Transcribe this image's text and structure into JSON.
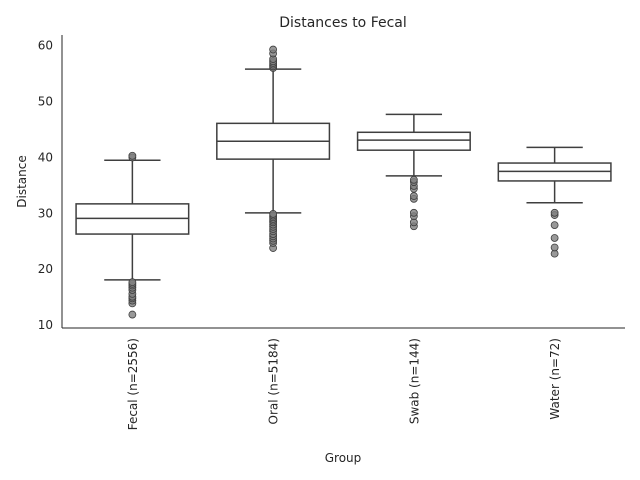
{
  "chart_data": {
    "type": "box",
    "title": "Distances to Fecal",
    "xlabel": "Group",
    "ylabel": "Distance",
    "ylim": [
      9.4,
      61.8
    ],
    "yticks": [
      10,
      20,
      30,
      40,
      50,
      60
    ],
    "grid": false,
    "legend": "none",
    "categories": [
      "Fecal (n=2556)",
      "Oral (n=5184)",
      "Swab (n=144)",
      "Water (n=72)"
    ],
    "boxes": [
      {
        "category": "Fecal (n=2556)",
        "whisker_low": 18.0,
        "q1": 26.2,
        "median": 29.0,
        "q3": 31.6,
        "whisker_high": 39.4,
        "outliers": [
          11.8,
          13.8,
          14.3,
          14.7,
          15.0,
          15.5,
          16.2,
          16.6,
          17.0,
          17.3,
          17.6,
          39.9,
          40.2
        ]
      },
      {
        "category": "Oral (n=5184)",
        "whisker_low": 30.0,
        "q1": 39.6,
        "median": 42.8,
        "q3": 46.0,
        "whisker_high": 55.7,
        "outliers": [
          23.7,
          24.6,
          25.0,
          25.4,
          25.8,
          26.2,
          26.7,
          27.1,
          27.5,
          27.9,
          28.3,
          28.6,
          28.9,
          29.2,
          29.5,
          29.8,
          55.9,
          56.2,
          56.5,
          56.8,
          57.1,
          57.5,
          58.5,
          59.2
        ]
      },
      {
        "category": "Swab (n=144)",
        "whisker_low": 36.6,
        "q1": 41.2,
        "median": 43.0,
        "q3": 44.4,
        "whisker_high": 47.6,
        "outliers": [
          27.6,
          28.3,
          29.4,
          30.0,
          32.5,
          33.0,
          34.3,
          34.8,
          35.5,
          35.9
        ]
      },
      {
        "category": "Water (n=72)",
        "whisker_low": 31.8,
        "q1": 35.7,
        "median": 37.4,
        "q3": 38.9,
        "whisker_high": 41.7,
        "outliers": [
          22.7,
          23.8,
          25.5,
          27.8,
          29.6,
          30.0
        ]
      }
    ],
    "colors": {
      "box_line": "#3f3f3f",
      "outlier_fill": "#7f7f7f",
      "outlier_edge": "#3f3f3f",
      "axis": "#262626"
    }
  }
}
